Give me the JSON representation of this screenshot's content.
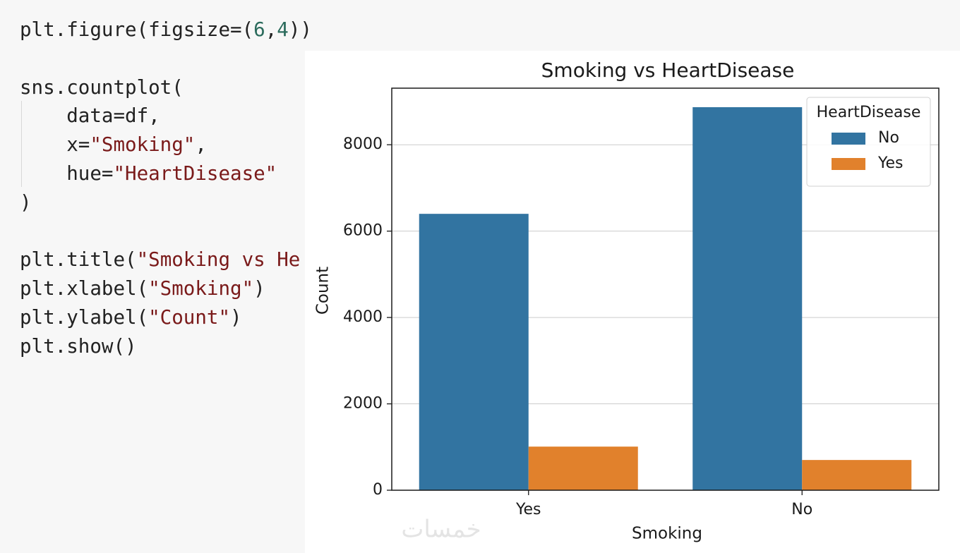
{
  "code": {
    "lines": [
      [
        {
          "text": "plt.figure(figsize=(",
          "color": "#222222"
        },
        {
          "text": "6",
          "color": "#2b6b5c"
        },
        {
          "text": ",",
          "color": "#222222"
        },
        {
          "text": "4",
          "color": "#2b6b5c"
        },
        {
          "text": "))",
          "color": "#222222"
        }
      ],
      [],
      [
        {
          "text": "sns.countplot(",
          "color": "#222222"
        }
      ],
      [
        {
          "text": "    data=df,",
          "color": "#222222"
        }
      ],
      [
        {
          "text": "    x=",
          "color": "#222222"
        },
        {
          "text": "\"Smoking\"",
          "color": "#7a1a1a"
        },
        {
          "text": ",",
          "color": "#222222"
        }
      ],
      [
        {
          "text": "    hue=",
          "color": "#222222"
        },
        {
          "text": "\"HeartDisease\"",
          "color": "#7a1a1a"
        }
      ],
      [
        {
          "text": ")",
          "color": "#222222"
        }
      ],
      [],
      [
        {
          "text": "plt.title(",
          "color": "#222222"
        },
        {
          "text": "\"Smoking vs He",
          "color": "#7a1a1a"
        }
      ],
      [
        {
          "text": "plt.xlabel(",
          "color": "#222222"
        },
        {
          "text": "\"Smoking\"",
          "color": "#7a1a1a"
        },
        {
          "text": ")",
          "color": "#222222"
        }
      ],
      [
        {
          "text": "plt.ylabel(",
          "color": "#222222"
        },
        {
          "text": "\"Count\"",
          "color": "#7a1a1a"
        },
        {
          "text": ")",
          "color": "#222222"
        }
      ],
      [
        {
          "text": "plt.show()",
          "color": "#222222"
        }
      ]
    ]
  },
  "watermark": "خمسات",
  "chart_data": {
    "type": "bar",
    "title": "Smoking vs HeartDisease",
    "x_label": "Smoking",
    "y_label": "Count",
    "categories": [
      "Yes",
      "No"
    ],
    "series": [
      {
        "name": "No",
        "color": "#3274a1",
        "values": [
          6400,
          8870
        ]
      },
      {
        "name": "Yes",
        "color": "#e1812c",
        "values": [
          1010,
          700
        ]
      }
    ],
    "legend_title": "HeartDisease",
    "legend": "upper right",
    "ylim": [
      0,
      9310
    ],
    "yticks": [
      0,
      2000,
      4000,
      6000,
      8000
    ],
    "grid": true
  }
}
